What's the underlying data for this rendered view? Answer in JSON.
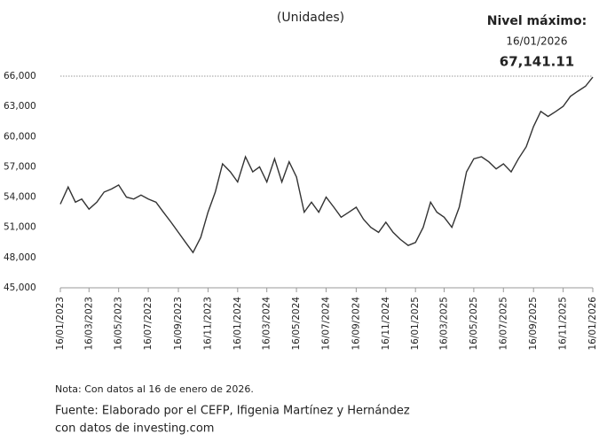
{
  "chart_data": {
    "type": "line",
    "title": "(Unidades)",
    "annotation": {
      "heading": "Nivel máximo:",
      "date": "16/01/2026",
      "value": "67,141.11"
    },
    "note": "Nota: Con datos al 16 de enero de 2026.",
    "source": "Fuente: Elaborado por el CEFP, Ifigenia Martínez y Hernández",
    "source_2": "con datos de investing.com",
    "color": "#333333",
    "x": [
      "16/01/2023",
      "01/02/2023",
      "16/02/2023",
      "01/03/2023",
      "16/03/2023",
      "01/04/2023",
      "16/04/2023",
      "01/05/2023",
      "16/05/2023",
      "01/06/2023",
      "16/06/2023",
      "01/07/2023",
      "16/07/2023",
      "01/08/2023",
      "16/08/2023",
      "01/09/2023",
      "16/09/2023",
      "01/10/2023",
      "16/10/2023",
      "01/11/2023",
      "16/11/2023",
      "01/12/2023",
      "16/12/2023",
      "01/01/2024",
      "16/01/2024",
      "01/02/2024",
      "16/02/2024",
      "01/03/2024",
      "16/03/2024",
      "01/04/2024",
      "16/04/2024",
      "01/05/2024",
      "16/05/2024",
      "01/06/2024",
      "16/06/2024",
      "01/07/2024",
      "16/07/2024",
      "01/08/2024",
      "16/08/2024",
      "01/09/2024",
      "16/09/2024",
      "01/10/2024",
      "16/10/2024",
      "01/11/2024",
      "16/11/2024",
      "01/12/2024",
      "16/12/2024",
      "01/01/2025",
      "16/01/2025",
      "01/02/2025",
      "16/02/2025",
      "01/03/2025",
      "16/03/2025",
      "01/04/2025",
      "16/04/2025",
      "01/05/2025",
      "16/05/2025",
      "01/06/2025",
      "16/06/2025",
      "01/07/2025",
      "16/07/2025",
      "01/08/2025",
      "16/08/2025",
      "01/09/2025",
      "16/09/2025",
      "01/10/2025",
      "16/10/2025",
      "01/11/2025",
      "16/11/2025",
      "01/12/2025",
      "16/12/2025",
      "01/01/2026",
      "16/01/2026"
    ],
    "values": [
      53300,
      55000,
      53500,
      53800,
      52800,
      53500,
      54500,
      54800,
      55200,
      54000,
      53800,
      54200,
      53800,
      53500,
      52500,
      51500,
      50500,
      49500,
      48500,
      50000,
      52500,
      54500,
      57300,
      56500,
      55500,
      58000,
      56500,
      57000,
      55500,
      57800,
      55500,
      57500,
      56000,
      52500,
      53500,
      52500,
      54000,
      53000,
      52000,
      52500,
      53000,
      51800,
      51000,
      50500,
      51500,
      50500,
      49800,
      49200,
      49500,
      51000,
      53500,
      52500,
      52000,
      51000,
      53000,
      56500,
      57800,
      58000,
      57500,
      56800,
      57300,
      56500,
      57800,
      59000,
      61000,
      62500,
      62000,
      62500,
      63000,
      64000,
      64500,
      65000,
      65900
    ],
    "xlim": [
      "16/01/2023",
      "16/01/2026"
    ],
    "xticks": [
      "16/01/2023",
      "16/03/2023",
      "16/05/2023",
      "16/07/2023",
      "16/09/2023",
      "16/11/2023",
      "16/01/2024",
      "16/03/2024",
      "16/05/2024",
      "16/07/2024",
      "16/09/2024",
      "16/11/2024",
      "16/01/2025",
      "16/03/2025",
      "16/05/2025",
      "16/07/2025",
      "16/09/2025",
      "16/11/2025",
      "16/01/2026"
    ],
    "ylim": [
      45000,
      66000
    ],
    "yticks": [
      {
        "value": 45000,
        "label": "45,000"
      },
      {
        "value": 48000,
        "label": "48,000"
      },
      {
        "value": 51000,
        "label": "51,000"
      },
      {
        "value": 54000,
        "label": "54,000"
      },
      {
        "value": 57000,
        "label": "57,000"
      },
      {
        "value": 60000,
        "label": "60,000"
      },
      {
        "value": 63000,
        "label": "63,000"
      },
      {
        "value": 66000,
        "label": "66,000"
      }
    ]
  }
}
